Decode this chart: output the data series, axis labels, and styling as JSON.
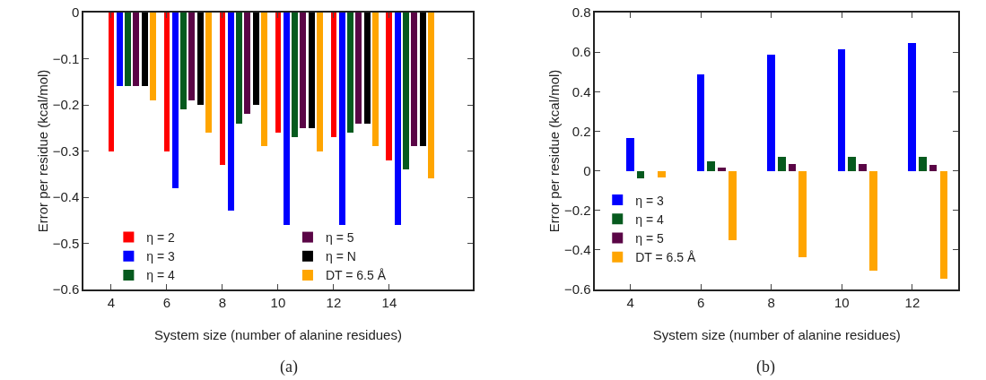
{
  "chart_data": [
    {
      "type": "bar",
      "xlabel": "System size (number of alanine residues)",
      "ylabel": "Error per residue (kcal/mol)",
      "annotations": [
        "(a)"
      ],
      "xlim": [
        3,
        17
      ],
      "xticks": [
        4,
        6,
        8,
        10,
        12,
        14
      ],
      "ylim": [
        -0.6,
        0
      ],
      "yticks": [
        -0.6,
        -0.5,
        -0.4,
        -0.3,
        -0.2,
        -0.1,
        0
      ],
      "grid": false,
      "legend": "bottom",
      "series": [
        {
          "name": "η = 2",
          "color": "#ff0000",
          "x": [
            4,
            6,
            8,
            10,
            12,
            14
          ],
          "values": [
            -0.3,
            -0.3,
            -0.33,
            -0.26,
            -0.27,
            -0.32
          ]
        },
        {
          "name": "η = 3",
          "color": "#0000ff",
          "x": [
            4.3,
            6.3,
            8.3,
            10.3,
            12.3,
            14.3
          ],
          "values": [
            -0.16,
            -0.38,
            -0.43,
            -0.46,
            -0.46,
            -0.46
          ]
        },
        {
          "name": "η = 4",
          "color": "#065a1e",
          "x": [
            4.6,
            6.6,
            8.6,
            10.6,
            12.6,
            14.6
          ],
          "values": [
            -0.16,
            -0.21,
            -0.24,
            -0.27,
            -0.26,
            -0.34
          ]
        },
        {
          "name": "η = 5",
          "color": "#5a0546",
          "x": [
            4.9,
            6.9,
            8.9,
            10.9,
            12.9,
            14.9
          ],
          "values": [
            -0.16,
            -0.19,
            -0.22,
            -0.25,
            -0.24,
            -0.29
          ]
        },
        {
          "name": "η = N",
          "color": "#000000",
          "x": [
            5.2,
            7.2,
            9.2,
            11.2,
            13.2,
            15.2
          ],
          "values": [
            -0.16,
            -0.2,
            -0.2,
            -0.25,
            -0.24,
            -0.29
          ]
        },
        {
          "name": "DT = 6.5 Å",
          "color": "#ffa500",
          "x": [
            5.5,
            7.5,
            9.5,
            11.5,
            13.5,
            15.5
          ],
          "values": [
            -0.19,
            -0.26,
            -0.29,
            -0.3,
            -0.29,
            -0.36
          ]
        }
      ]
    },
    {
      "type": "bar",
      "xlabel": "System size (number of alanine residues)",
      "ylabel": "Error per residue (kcal/mol)",
      "annotations": [
        "(b)"
      ],
      "xlim": [
        3,
        13.3
      ],
      "xticks": [
        4,
        6,
        8,
        10,
        12
      ],
      "ylim": [
        -0.6,
        0.8
      ],
      "yticks": [
        -0.6,
        -0.4,
        -0.2,
        0,
        0.2,
        0.4,
        0.6,
        0.8
      ],
      "grid": false,
      "legend": "left",
      "series": [
        {
          "name": "η = 3",
          "color": "#0000ff",
          "x": [
            4,
            6,
            8,
            10,
            12
          ],
          "values": [
            0.165,
            0.486,
            0.586,
            0.613,
            0.648
          ]
        },
        {
          "name": "η = 4",
          "color": "#065a1e",
          "x": [
            4.3,
            6.3,
            8.3,
            10.3,
            12.3
          ],
          "values": [
            -0.038,
            0.048,
            0.071,
            0.071,
            0.071
          ]
        },
        {
          "name": "η = 5",
          "color": "#5a0546",
          "x": [
            6.6,
            8.6,
            10.6,
            12.6
          ],
          "values": [
            0.017,
            0.036,
            0.033,
            0.031
          ]
        },
        {
          "name": "DT = 6.5 Å",
          "color": "#ffa500",
          "x": [
            4.9,
            6.9,
            8.9,
            10.9,
            12.9
          ],
          "values": [
            -0.035,
            -0.352,
            -0.435,
            -0.503,
            -0.544
          ]
        }
      ]
    }
  ]
}
